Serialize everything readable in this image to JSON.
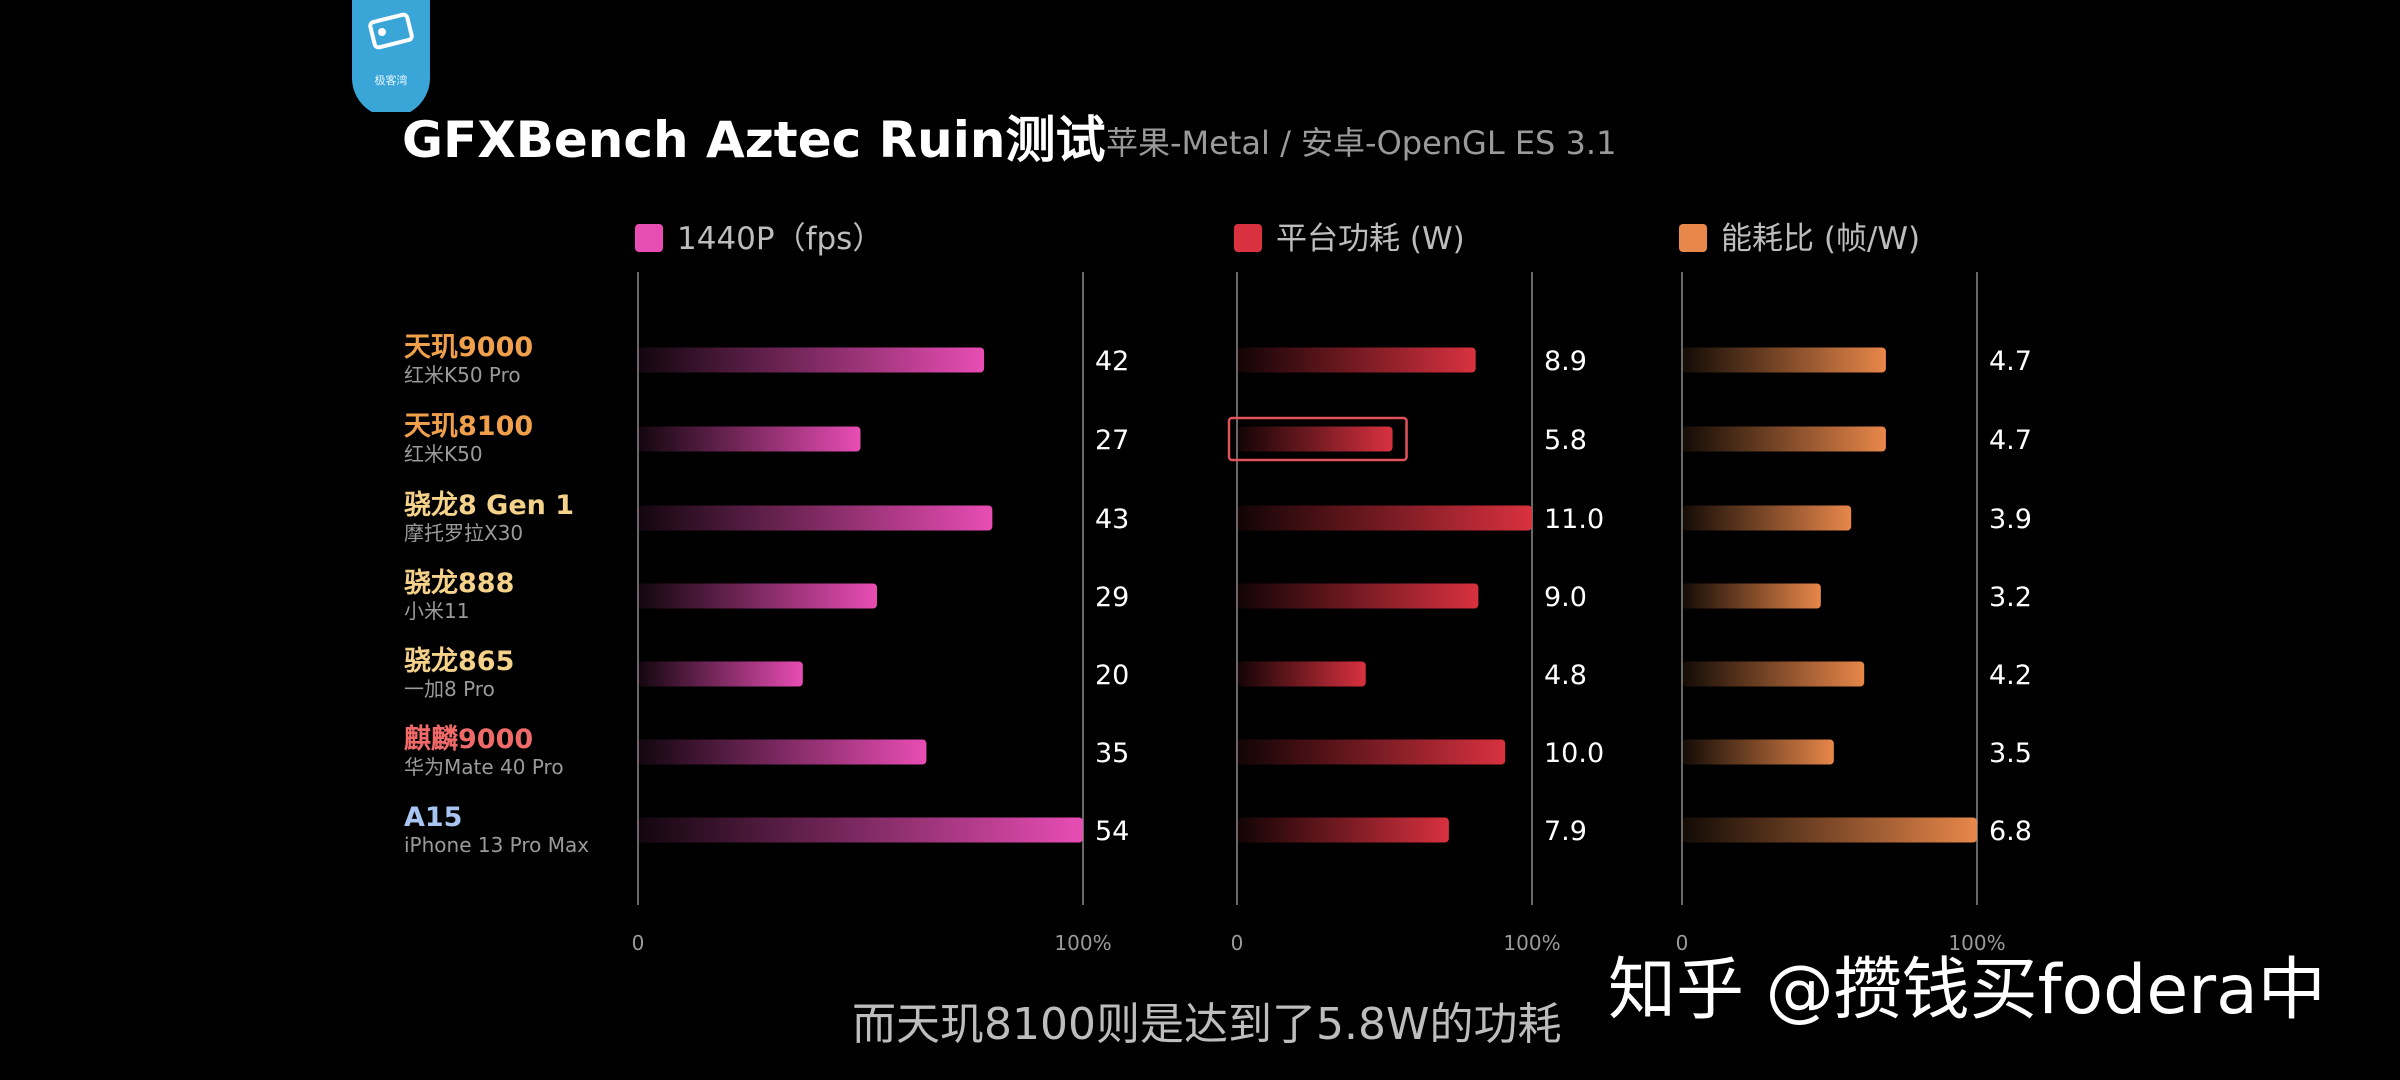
{
  "header": {
    "title": "GFXBench Aztec Ruin测试",
    "subtitle": "苹果-Metal / 安卓-OpenGL ES 3.1"
  },
  "chart_data": {
    "type": "bar",
    "orientation": "horizontal",
    "categories": [
      {
        "chip": "天玑9000",
        "phone": "红米K50 Pro",
        "color": "#f0a04b"
      },
      {
        "chip": "天玑8100",
        "phone": "红米K50",
        "color": "#f0a04b"
      },
      {
        "chip": "骁龙8 Gen 1",
        "phone": "摩托罗拉X30",
        "color": "#f5d28a"
      },
      {
        "chip": "骁龙888",
        "phone": "小米11",
        "color": "#f5d28a"
      },
      {
        "chip": "骁龙865",
        "phone": "一加8 Pro",
        "color": "#f5d28a"
      },
      {
        "chip": "麒麟9000",
        "phone": "华为Mate 40 Pro",
        "color": "#f06a6a"
      },
      {
        "chip": "A15",
        "phone": "iPhone 13 Pro Max",
        "color": "#a8c4f0"
      }
    ],
    "series": [
      {
        "name": "1440P（fps）",
        "color": "#e84db4",
        "max": 54,
        "values": [
          42,
          27,
          43,
          29,
          20,
          35,
          54
        ],
        "labels": [
          "42",
          "27",
          "43",
          "29",
          "20",
          "35",
          "54"
        ]
      },
      {
        "name": "平台功耗 (W)",
        "color": "#d9313f",
        "max": 11.0,
        "values": [
          8.9,
          5.8,
          11.0,
          9.0,
          4.8,
          10.0,
          7.9
        ],
        "labels": [
          "8.9",
          "5.8",
          "11.0",
          "9.0",
          "4.8",
          "10.0",
          "7.9"
        ]
      },
      {
        "name": "能耗比 (帧/W)",
        "color": "#e8874a",
        "max": 6.8,
        "values": [
          4.7,
          4.7,
          3.9,
          3.2,
          4.2,
          3.5,
          6.8
        ],
        "labels": [
          "4.7",
          "4.7",
          "3.9",
          "3.2",
          "4.2",
          "3.5",
          "6.8"
        ]
      }
    ],
    "axis_min_label": "0",
    "axis_max_label": "100%",
    "highlight": {
      "series": 1,
      "category": 1
    }
  },
  "caption": "而天玑8100则是达到了5.8W的功耗",
  "watermark": "知乎 @攒钱买fodera中",
  "logo_text": "极客湾"
}
